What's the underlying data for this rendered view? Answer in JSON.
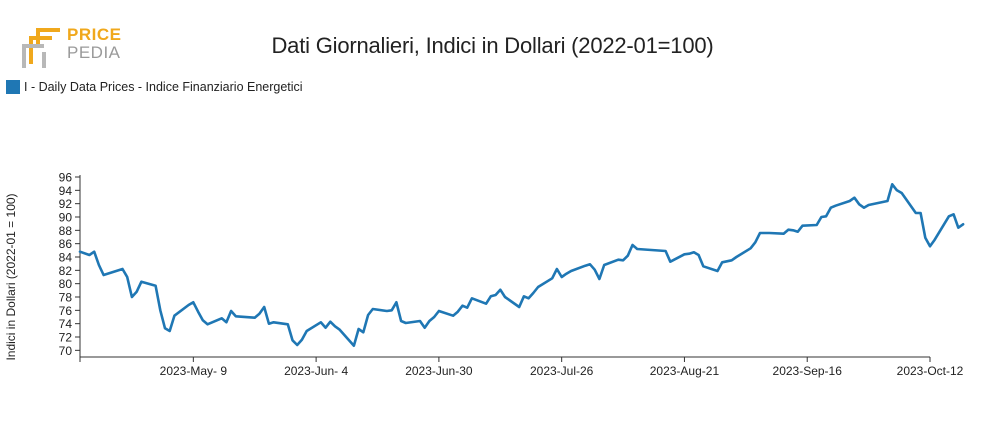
{
  "logo": {
    "line1": "PRICE",
    "line2": "PEDIA",
    "colors": {
      "orange": "#f0a81c",
      "gray": "#9a9a9a"
    }
  },
  "chart_data": {
    "type": "line",
    "title": "Dati Giornalieri, Indici in Dollari (2022-01=100)",
    "ylabel": "Indici in Dollari (2022-01 = 100)",
    "xlabel": "",
    "ylim": [
      69,
      96
    ],
    "yticks": [
      70,
      72,
      74,
      76,
      78,
      80,
      82,
      84,
      86,
      88,
      90,
      92,
      94,
      96
    ],
    "xlim": [
      "2023-04-15",
      "2023-10-12"
    ],
    "xticks": [
      {
        "date": "2023-05-09",
        "label": "2023-May- 9"
      },
      {
        "date": "2023-06-04",
        "label": "2023-Jun- 4"
      },
      {
        "date": "2023-06-30",
        "label": "2023-Jun-30"
      },
      {
        "date": "2023-07-26",
        "label": "2023-Jul-26"
      },
      {
        "date": "2023-08-21",
        "label": "2023-Aug-21"
      },
      {
        "date": "2023-09-16",
        "label": "2023-Sep-16"
      },
      {
        "date": "2023-10-12",
        "label": "2023-Oct-12"
      }
    ],
    "legend_position": "top-left",
    "grid": false,
    "series": [
      {
        "name": "I - Daily Data Prices - Indice Finanziario Energetici",
        "color": "#1f77b4",
        "points": [
          [
            "2023-04-15",
            84.8
          ],
          [
            "2023-04-17",
            84.3
          ],
          [
            "2023-04-18",
            84.8
          ],
          [
            "2023-04-19",
            82.8
          ],
          [
            "2023-04-20",
            81.3
          ],
          [
            "2023-04-24",
            82.2
          ],
          [
            "2023-04-25",
            81.0
          ],
          [
            "2023-04-26",
            78.0
          ],
          [
            "2023-04-27",
            78.8
          ],
          [
            "2023-04-28",
            80.3
          ],
          [
            "2023-05-01",
            79.7
          ],
          [
            "2023-05-02",
            76.0
          ],
          [
            "2023-05-03",
            73.3
          ],
          [
            "2023-05-04",
            72.9
          ],
          [
            "2023-05-05",
            75.2
          ],
          [
            "2023-05-08",
            76.8
          ],
          [
            "2023-05-09",
            77.2
          ],
          [
            "2023-05-10",
            75.8
          ],
          [
            "2023-05-11",
            74.5
          ],
          [
            "2023-05-12",
            73.9
          ],
          [
            "2023-05-15",
            74.8
          ],
          [
            "2023-05-16",
            74.2
          ],
          [
            "2023-05-17",
            75.9
          ],
          [
            "2023-05-18",
            75.1
          ],
          [
            "2023-05-22",
            74.9
          ],
          [
            "2023-05-23",
            75.5
          ],
          [
            "2023-05-24",
            76.5
          ],
          [
            "2023-05-25",
            74.0
          ],
          [
            "2023-05-26",
            74.2
          ],
          [
            "2023-05-29",
            73.9
          ],
          [
            "2023-05-30",
            71.5
          ],
          [
            "2023-05-31",
            70.8
          ],
          [
            "2023-06-01",
            71.6
          ],
          [
            "2023-06-02",
            72.9
          ],
          [
            "2023-06-05",
            74.2
          ],
          [
            "2023-06-06",
            73.4
          ],
          [
            "2023-06-07",
            74.3
          ],
          [
            "2023-06-08",
            73.6
          ],
          [
            "2023-06-09",
            73.1
          ],
          [
            "2023-06-12",
            70.7
          ],
          [
            "2023-06-13",
            73.2
          ],
          [
            "2023-06-14",
            72.7
          ],
          [
            "2023-06-15",
            75.3
          ],
          [
            "2023-06-16",
            76.2
          ],
          [
            "2023-06-19",
            75.9
          ],
          [
            "2023-06-20",
            76.0
          ],
          [
            "2023-06-21",
            77.2
          ],
          [
            "2023-06-22",
            74.4
          ],
          [
            "2023-06-23",
            74.1
          ],
          [
            "2023-06-26",
            74.4
          ],
          [
            "2023-06-27",
            73.4
          ],
          [
            "2023-06-28",
            74.4
          ],
          [
            "2023-06-29",
            75.0
          ],
          [
            "2023-06-30",
            75.9
          ],
          [
            "2023-07-03",
            75.2
          ],
          [
            "2023-07-04",
            75.8
          ],
          [
            "2023-07-05",
            76.7
          ],
          [
            "2023-07-06",
            76.4
          ],
          [
            "2023-07-07",
            77.8
          ],
          [
            "2023-07-10",
            77.0
          ],
          [
            "2023-07-11",
            78.1
          ],
          [
            "2023-07-12",
            78.3
          ],
          [
            "2023-07-13",
            79.1
          ],
          [
            "2023-07-14",
            78.0
          ],
          [
            "2023-07-17",
            76.5
          ],
          [
            "2023-07-18",
            78.1
          ],
          [
            "2023-07-19",
            77.8
          ],
          [
            "2023-07-20",
            78.6
          ],
          [
            "2023-07-21",
            79.5
          ],
          [
            "2023-07-24",
            80.8
          ],
          [
            "2023-07-25",
            82.2
          ],
          [
            "2023-07-26",
            81.0
          ],
          [
            "2023-07-27",
            81.5
          ],
          [
            "2023-07-28",
            81.9
          ],
          [
            "2023-07-31",
            82.7
          ],
          [
            "2023-08-01",
            82.9
          ],
          [
            "2023-08-02",
            82.1
          ],
          [
            "2023-08-03",
            80.7
          ],
          [
            "2023-08-04",
            82.8
          ],
          [
            "2023-08-07",
            83.6
          ],
          [
            "2023-08-08",
            83.5
          ],
          [
            "2023-08-09",
            84.2
          ],
          [
            "2023-08-10",
            85.8
          ],
          [
            "2023-08-11",
            85.2
          ],
          [
            "2023-08-17",
            84.9
          ],
          [
            "2023-08-18",
            83.3
          ],
          [
            "2023-08-21",
            84.4
          ],
          [
            "2023-08-22",
            84.5
          ],
          [
            "2023-08-23",
            84.7
          ],
          [
            "2023-08-24",
            84.3
          ],
          [
            "2023-08-25",
            82.6
          ],
          [
            "2023-08-28",
            81.9
          ],
          [
            "2023-08-29",
            83.2
          ],
          [
            "2023-08-31",
            83.5
          ],
          [
            "2023-09-01",
            84.0
          ],
          [
            "2023-09-04",
            85.3
          ],
          [
            "2023-09-05",
            86.2
          ],
          [
            "2023-09-06",
            87.6
          ],
          [
            "2023-09-08",
            87.6
          ],
          [
            "2023-09-11",
            87.5
          ],
          [
            "2023-09-12",
            88.1
          ],
          [
            "2023-09-13",
            88.0
          ],
          [
            "2023-09-14",
            87.8
          ],
          [
            "2023-09-15",
            88.7
          ],
          [
            "2023-09-18",
            88.8
          ],
          [
            "2023-09-19",
            90.0
          ],
          [
            "2023-09-20",
            90.1
          ],
          [
            "2023-09-21",
            91.4
          ],
          [
            "2023-09-22",
            91.7
          ],
          [
            "2023-09-25",
            92.4
          ],
          [
            "2023-09-26",
            92.9
          ],
          [
            "2023-09-27",
            91.9
          ],
          [
            "2023-09-28",
            91.4
          ],
          [
            "2023-09-29",
            91.8
          ],
          [
            "2023-10-03",
            92.4
          ],
          [
            "2023-10-04",
            94.9
          ],
          [
            "2023-10-05",
            94.0
          ],
          [
            "2023-10-06",
            93.6
          ],
          [
            "2023-10-09",
            90.6
          ],
          [
            "2023-10-10",
            90.6
          ],
          [
            "2023-10-11",
            86.9
          ],
          [
            "2023-10-12",
            85.6
          ],
          [
            "2023-10-13",
            86.6
          ],
          [
            "2023-10-16",
            90.1
          ],
          [
            "2023-10-17",
            90.4
          ],
          [
            "2023-10-18",
            88.4
          ],
          [
            "2023-10-19",
            88.9
          ]
        ]
      }
    ]
  }
}
